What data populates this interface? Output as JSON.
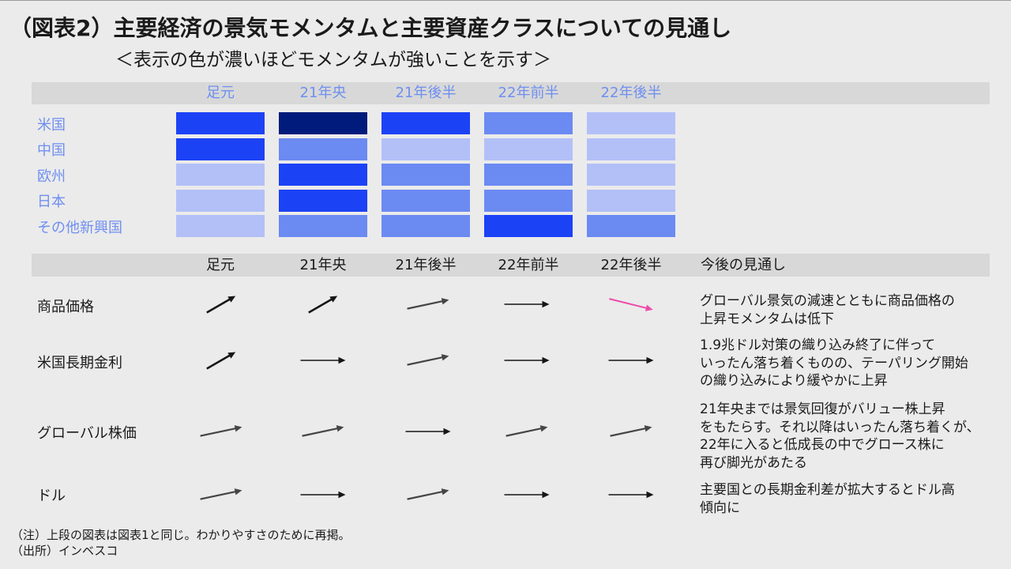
{
  "title": "（図表2）主要経済の景気モメンタムと主要資産クラスについての見通し",
  "subtitle": "＜表示の色が濃いほどモメンタムが強いことを示す＞",
  "colors": {
    "page_background": "#ebebeb",
    "header_band": "#d8d8d8",
    "header_text_blue": "#6f8ff0",
    "text": "#1a1a1a",
    "arrow_default": "#161616",
    "arrow_highlight": "#ee4aa8"
  },
  "chart_data": [
    {
      "type": "heatmap",
      "columns": [
        "足元",
        "21年央",
        "21年後半",
        "22年前半",
        "22年後半"
      ],
      "rows": [
        "米国",
        "中国",
        "欧州",
        "日本",
        "その他新興国"
      ],
      "values": [
        [
          3,
          4,
          3,
          2,
          1
        ],
        [
          3,
          2,
          1,
          1,
          1
        ],
        [
          1,
          3,
          2,
          2,
          1
        ],
        [
          1,
          3,
          2,
          2,
          1
        ],
        [
          1,
          2,
          2,
          3,
          2
        ]
      ],
      "color_scale": [
        "#b3c0f7",
        "#6b8af2",
        "#1c42f5",
        "#001b7b"
      ]
    },
    {
      "type": "table",
      "columns": [
        "足元",
        "21年央",
        "21年後半",
        "22年前半",
        "22年後半",
        "今後の見通し"
      ],
      "rows": [
        {
          "label": "商品価格",
          "trend": [
            {
              "dir": "up-steep"
            },
            {
              "dir": "up-steep"
            },
            {
              "dir": "up"
            },
            {
              "dir": "flat"
            },
            {
              "dir": "down",
              "color": "#ee4aa8"
            }
          ],
          "outlook": "グローバル景気の減速とともに商品価格の\n上昇モメンタムは低下"
        },
        {
          "label": "米国長期金利",
          "trend": [
            {
              "dir": "up-steep"
            },
            {
              "dir": "flat"
            },
            {
              "dir": "up"
            },
            {
              "dir": "flat"
            },
            {
              "dir": "flat"
            }
          ],
          "outlook": "1.9兆ドル対策の織り込み終了に伴って\nいったん落ち着くものの、テーパリング開始\nの織り込みにより緩やかに上昇"
        },
        {
          "label": "グローバル株価",
          "trend": [
            {
              "dir": "up"
            },
            {
              "dir": "up"
            },
            {
              "dir": "flat"
            },
            {
              "dir": "up"
            },
            {
              "dir": "up"
            }
          ],
          "outlook": "21年央までは景気回復がバリュー株上昇\nをもたらす。それ以降はいったん落ち着くが、\n22年に入ると低成長の中でグロース株に\n再び脚光があたる"
        },
        {
          "label": "ドル",
          "trend": [
            {
              "dir": "up"
            },
            {
              "dir": "flat"
            },
            {
              "dir": "up"
            },
            {
              "dir": "flat"
            },
            {
              "dir": "flat"
            }
          ],
          "outlook": "主要国との長期金利差が拡大するとドル高\n傾向に"
        }
      ]
    }
  ],
  "notes": [
    "（注）上段の図表は図表1と同じ。わかりやすさのために再掲。",
    "（出所）インベスコ"
  ]
}
